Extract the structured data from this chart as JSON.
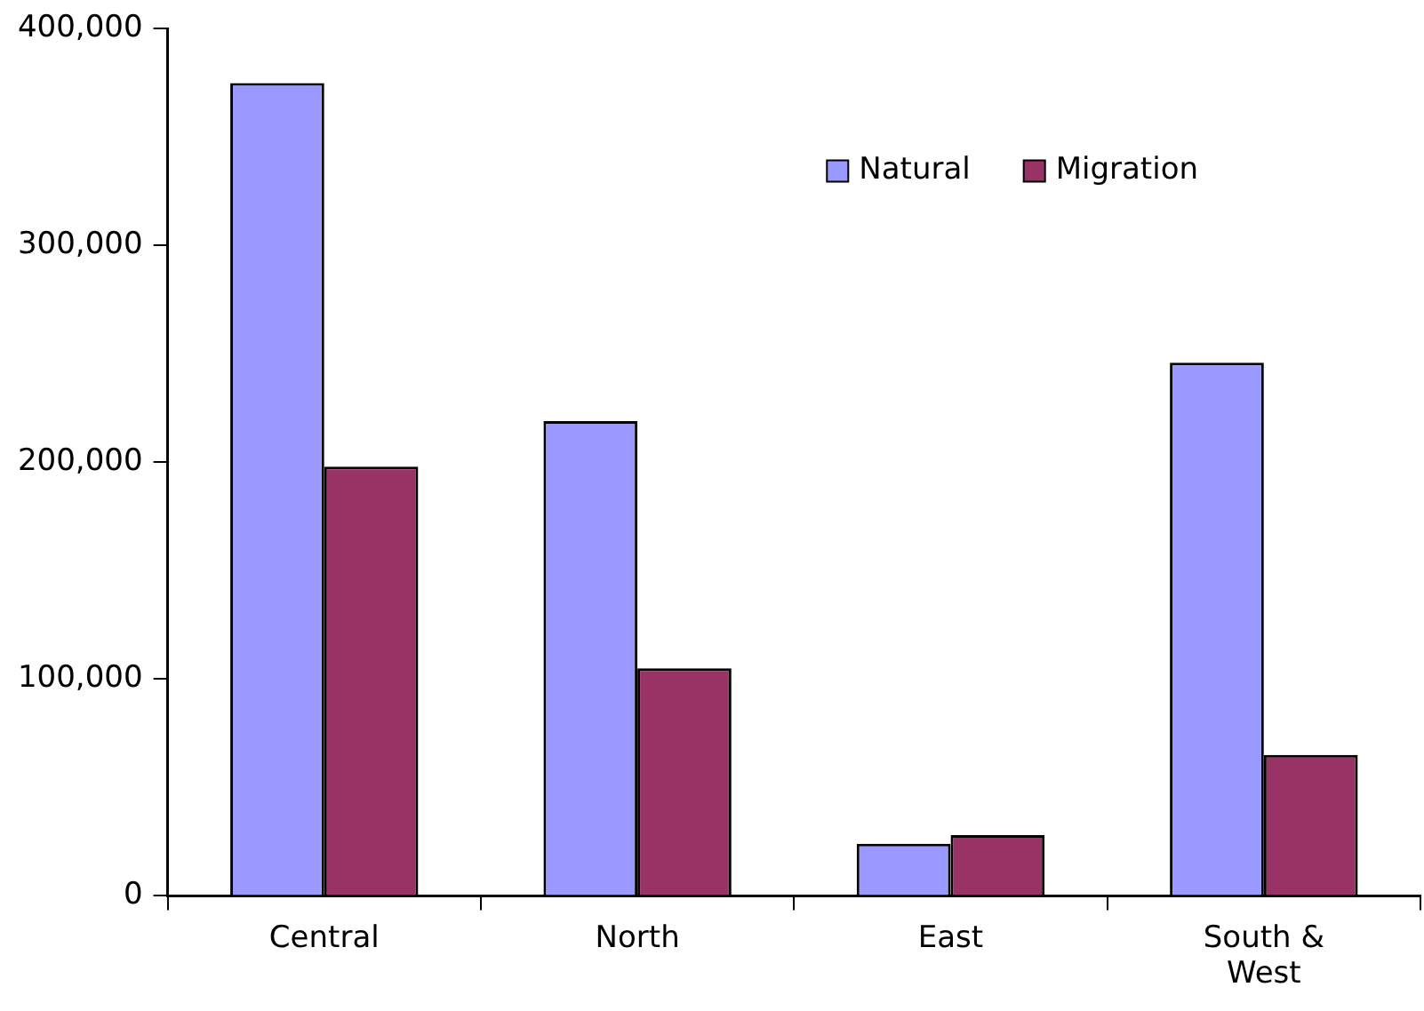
{
  "chart_data": {
    "type": "bar",
    "categories": [
      "Central",
      "North",
      "East",
      "South & West"
    ],
    "series": [
      {
        "name": "Natural",
        "color": "#9999ff",
        "values": [
          375000,
          219000,
          24000,
          246000
        ]
      },
      {
        "name": "Migration",
        "color": "#993366",
        "values": [
          198000,
          105000,
          28000,
          65000
        ]
      }
    ],
    "ylim": [
      0,
      400000
    ],
    "yticks": [
      0,
      {
        "value": 100000,
        "label": "100,000"
      },
      {
        "value": 200000,
        "label": "200,000"
      },
      {
        "value": 300000,
        "label": "300,000"
      },
      {
        "value": 400000,
        "label": "400,000"
      }
    ],
    "grid": false,
    "legend": "top right"
  }
}
